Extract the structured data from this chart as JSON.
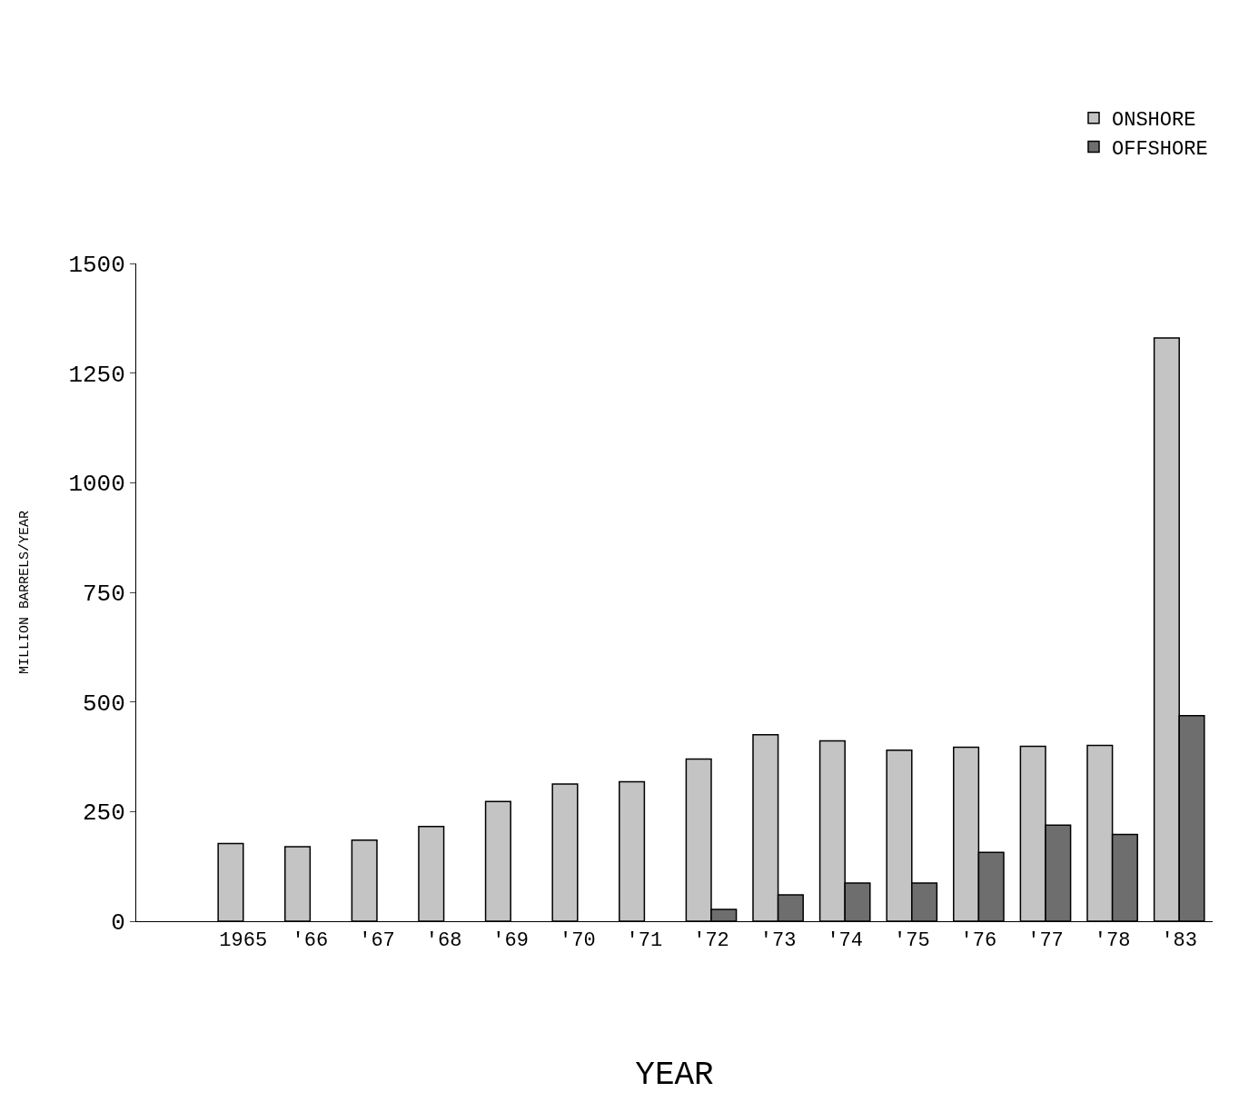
{
  "chart_data": {
    "type": "bar",
    "xlabel": "YEAR",
    "ylabel": "MILLION BARRELS/YEAR",
    "categories": [
      "1965",
      "'66",
      "'67",
      "'68",
      "'69",
      "'70",
      "'71",
      "'72",
      "'73",
      "'74",
      "'75",
      "'76",
      "'77",
      "'78",
      "'83"
    ],
    "series": [
      {
        "name": "ONSHORE",
        "color": "#c4c4c4",
        "values": [
          177,
          170,
          185,
          216,
          273,
          313,
          318,
          370,
          425,
          411,
          390,
          397,
          399,
          401,
          1330
        ]
      },
      {
        "name": "OFFSHORE",
        "color": "#6e6e6e",
        "values": [
          null,
          null,
          null,
          null,
          null,
          null,
          null,
          27,
          60,
          87,
          87,
          157,
          219,
          198,
          469
        ]
      }
    ],
    "ylim": [
      0,
      1500
    ],
    "yticks": [
      0,
      250,
      500,
      750,
      1000,
      1250,
      1500
    ],
    "legend": "top right"
  }
}
